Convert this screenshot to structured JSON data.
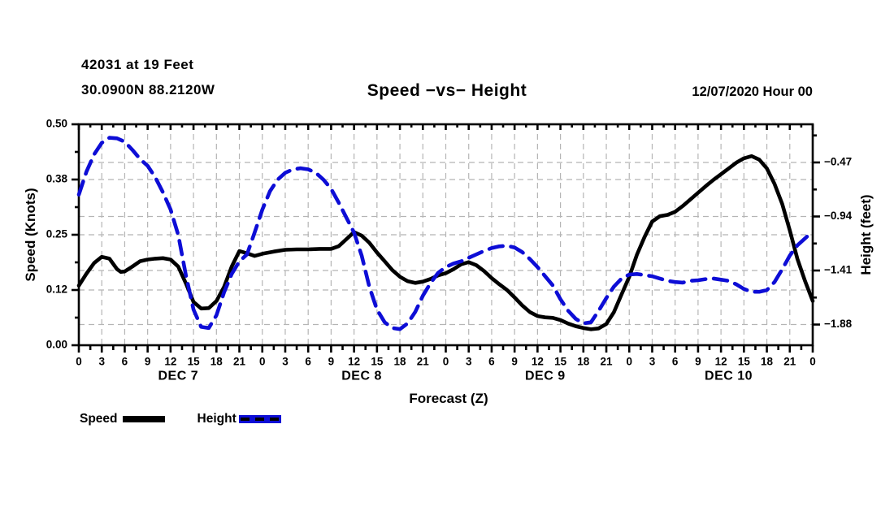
{
  "header": {
    "station_line1": "42031 at 19 Feet",
    "station_line2": "30.0900N 88.2120W",
    "title": "Speed −vs− Height",
    "datetime": "12/07/2020 Hour 00"
  },
  "colors": {
    "speed_line": "#000000",
    "height_line": "#0d0dd6",
    "grid": "#b5b5b5",
    "axis": "#000000",
    "background": "#ffffff"
  },
  "legend": {
    "speed_label": "Speed",
    "height_label": "Height"
  },
  "axes": {
    "x": {
      "title": "Forecast (Z)",
      "hour_tick_labels": [
        "0",
        "3",
        "6",
        "9",
        "12",
        "15",
        "18",
        "21",
        "0",
        "3",
        "6",
        "9",
        "12",
        "15",
        "18",
        "21",
        "0",
        "3",
        "6",
        "9",
        "12",
        "15",
        "18",
        "21",
        "0",
        "3",
        "6",
        "9",
        "12",
        "15",
        "18",
        "21",
        "0"
      ],
      "major_step_hours": 3,
      "minor_step_hours": 1.5,
      "hours_total": 96,
      "day_labels": [
        "DEC 7",
        "DEC 8",
        "DEC 9",
        "DEC 10"
      ]
    },
    "left": {
      "title": "Speed (Knots)",
      "ticks": [
        {
          "v": 0.0,
          "label": "0.00"
        },
        {
          "v": 0.125,
          "label": "0.12"
        },
        {
          "v": 0.25,
          "label": "0.25"
        },
        {
          "v": 0.375,
          "label": "0.38"
        },
        {
          "v": 0.5,
          "label": "0.50"
        }
      ],
      "minor_ticks": [
        0.0625,
        0.1875,
        0.3125,
        0.4375
      ],
      "range": [
        0.0,
        0.5
      ]
    },
    "right": {
      "title": "Height (feet)",
      "ticks": [
        {
          "v": -0.47,
          "label": "−0.47"
        },
        {
          "v": -0.94,
          "label": "−0.94"
        },
        {
          "v": -1.41,
          "label": "−1.41"
        },
        {
          "v": -1.88,
          "label": "−1.88"
        }
      ],
      "minor_ticks": [
        -0.235,
        -0.705,
        -1.175,
        -1.645
      ],
      "range": [
        -0.138,
        -2.06
      ]
    }
  },
  "chart_data": {
    "type": "line",
    "title": "Speed −vs− Height",
    "x_unit": "forecast hour (Z) from 12/07/2020 00Z",
    "x_range": [
      0,
      96
    ],
    "grid": true,
    "legend_position": "bottom-left",
    "series": [
      {
        "name": "Speed",
        "axis": "left",
        "unit": "knots",
        "style": "solid",
        "color": "#000000",
        "points": [
          [
            0,
            0.135
          ],
          [
            1,
            0.162
          ],
          [
            2,
            0.186
          ],
          [
            3,
            0.2
          ],
          [
            4,
            0.196
          ],
          [
            5,
            0.172
          ],
          [
            5.5,
            0.166
          ],
          [
            6,
            0.167
          ],
          [
            7,
            0.178
          ],
          [
            8,
            0.19
          ],
          [
            9,
            0.194
          ],
          [
            10,
            0.196
          ],
          [
            11,
            0.197
          ],
          [
            12,
            0.194
          ],
          [
            13,
            0.178
          ],
          [
            14,
            0.14
          ],
          [
            15,
            0.098
          ],
          [
            16,
            0.083
          ],
          [
            17,
            0.084
          ],
          [
            18,
            0.1
          ],
          [
            19,
            0.132
          ],
          [
            20,
            0.178
          ],
          [
            21,
            0.213
          ],
          [
            22,
            0.208
          ],
          [
            23,
            0.202
          ],
          [
            24,
            0.207
          ],
          [
            25.5,
            0.212
          ],
          [
            27,
            0.216
          ],
          [
            28.5,
            0.217
          ],
          [
            30,
            0.217
          ],
          [
            31.5,
            0.218
          ],
          [
            33,
            0.218
          ],
          [
            34,
            0.224
          ],
          [
            35,
            0.24
          ],
          [
            36,
            0.256
          ],
          [
            37,
            0.248
          ],
          [
            38,
            0.232
          ],
          [
            39,
            0.21
          ],
          [
            40,
            0.19
          ],
          [
            41,
            0.17
          ],
          [
            42,
            0.155
          ],
          [
            43,
            0.145
          ],
          [
            44,
            0.141
          ],
          [
            45,
            0.144
          ],
          [
            46,
            0.15
          ],
          [
            47,
            0.158
          ],
          [
            48,
            0.163
          ],
          [
            49,
            0.172
          ],
          [
            50,
            0.183
          ],
          [
            51,
            0.188
          ],
          [
            52,
            0.181
          ],
          [
            53,
            0.168
          ],
          [
            54,
            0.152
          ],
          [
            55,
            0.138
          ],
          [
            56,
            0.125
          ],
          [
            57,
            0.108
          ],
          [
            58,
            0.09
          ],
          [
            59,
            0.075
          ],
          [
            60,
            0.066
          ],
          [
            61,
            0.063
          ],
          [
            62,
            0.062
          ],
          [
            63,
            0.057
          ],
          [
            64,
            0.049
          ],
          [
            65,
            0.043
          ],
          [
            66,
            0.039
          ],
          [
            67,
            0.036
          ],
          [
            68,
            0.038
          ],
          [
            69,
            0.048
          ],
          [
            70,
            0.075
          ],
          [
            71,
            0.115
          ],
          [
            72,
            0.155
          ],
          [
            73,
            0.205
          ],
          [
            74,
            0.245
          ],
          [
            75,
            0.28
          ],
          [
            76,
            0.292
          ],
          [
            77,
            0.295
          ],
          [
            78,
            0.302
          ],
          [
            79,
            0.315
          ],
          [
            80,
            0.33
          ],
          [
            81,
            0.345
          ],
          [
            82,
            0.36
          ],
          [
            83,
            0.374
          ],
          [
            84,
            0.387
          ],
          [
            85,
            0.4
          ],
          [
            86,
            0.413
          ],
          [
            87,
            0.423
          ],
          [
            88,
            0.428
          ],
          [
            89,
            0.42
          ],
          [
            90,
            0.4
          ],
          [
            91,
            0.365
          ],
          [
            92,
            0.32
          ],
          [
            93,
            0.26
          ],
          [
            94,
            0.195
          ],
          [
            95,
            0.145
          ],
          [
            96,
            0.1
          ]
        ]
      },
      {
        "name": "Height",
        "axis": "right",
        "unit": "feet",
        "style": "dashed",
        "color": "#0d0dd6",
        "points": [
          [
            0,
            -0.75
          ],
          [
            1,
            -0.55
          ],
          [
            2,
            -0.4
          ],
          [
            3,
            -0.3
          ],
          [
            4,
            -0.255
          ],
          [
            5,
            -0.26
          ],
          [
            6,
            -0.29
          ],
          [
            7,
            -0.36
          ],
          [
            8,
            -0.44
          ],
          [
            9,
            -0.5
          ],
          [
            10,
            -0.6
          ],
          [
            11,
            -0.73
          ],
          [
            12,
            -0.88
          ],
          [
            13,
            -1.1
          ],
          [
            14,
            -1.45
          ],
          [
            15,
            -1.75
          ],
          [
            16,
            -1.9
          ],
          [
            17,
            -1.91
          ],
          [
            18,
            -1.8
          ],
          [
            19,
            -1.6
          ],
          [
            20,
            -1.44
          ],
          [
            21,
            -1.33
          ],
          [
            22,
            -1.27
          ],
          [
            23,
            -1.08
          ],
          [
            24,
            -0.88
          ],
          [
            25,
            -0.72
          ],
          [
            26,
            -0.62
          ],
          [
            27,
            -0.56
          ],
          [
            28,
            -0.53
          ],
          [
            29,
            -0.52
          ],
          [
            30,
            -0.53
          ],
          [
            31,
            -0.56
          ],
          [
            32,
            -0.62
          ],
          [
            33,
            -0.7
          ],
          [
            34,
            -0.82
          ],
          [
            35,
            -0.95
          ],
          [
            36,
            -1.08
          ],
          [
            37,
            -1.28
          ],
          [
            38,
            -1.55
          ],
          [
            39,
            -1.75
          ],
          [
            40,
            -1.86
          ],
          [
            41,
            -1.91
          ],
          [
            42,
            -1.92
          ],
          [
            43,
            -1.87
          ],
          [
            44,
            -1.77
          ],
          [
            45,
            -1.63
          ],
          [
            46,
            -1.52
          ],
          [
            47,
            -1.43
          ],
          [
            48,
            -1.38
          ],
          [
            49,
            -1.35
          ],
          [
            50,
            -1.33
          ],
          [
            51,
            -1.3
          ],
          [
            52,
            -1.27
          ],
          [
            53,
            -1.24
          ],
          [
            54,
            -1.215
          ],
          [
            55,
            -1.2
          ],
          [
            56,
            -1.195
          ],
          [
            57,
            -1.21
          ],
          [
            58,
            -1.25
          ],
          [
            59,
            -1.31
          ],
          [
            60,
            -1.38
          ],
          [
            61,
            -1.46
          ],
          [
            62,
            -1.54
          ],
          [
            63,
            -1.66
          ],
          [
            64,
            -1.76
          ],
          [
            65,
            -1.83
          ],
          [
            66,
            -1.87
          ],
          [
            67,
            -1.86
          ],
          [
            68,
            -1.76
          ],
          [
            69,
            -1.65
          ],
          [
            70,
            -1.55
          ],
          [
            71,
            -1.48
          ],
          [
            72,
            -1.445
          ],
          [
            73,
            -1.44
          ],
          [
            74,
            -1.45
          ],
          [
            75,
            -1.46
          ],
          [
            76,
            -1.48
          ],
          [
            77,
            -1.5
          ],
          [
            78,
            -1.51
          ],
          [
            79,
            -1.515
          ],
          [
            80,
            -1.5
          ],
          [
            81,
            -1.495
          ],
          [
            82,
            -1.485
          ],
          [
            83,
            -1.48
          ],
          [
            84,
            -1.49
          ],
          [
            85,
            -1.5
          ],
          [
            86,
            -1.53
          ],
          [
            87,
            -1.57
          ],
          [
            88,
            -1.595
          ],
          [
            89,
            -1.595
          ],
          [
            90,
            -1.58
          ],
          [
            91,
            -1.51
          ],
          [
            92,
            -1.4
          ],
          [
            93,
            -1.28
          ],
          [
            94,
            -1.19
          ],
          [
            95,
            -1.13
          ],
          [
            96,
            -1.07
          ]
        ]
      }
    ]
  }
}
